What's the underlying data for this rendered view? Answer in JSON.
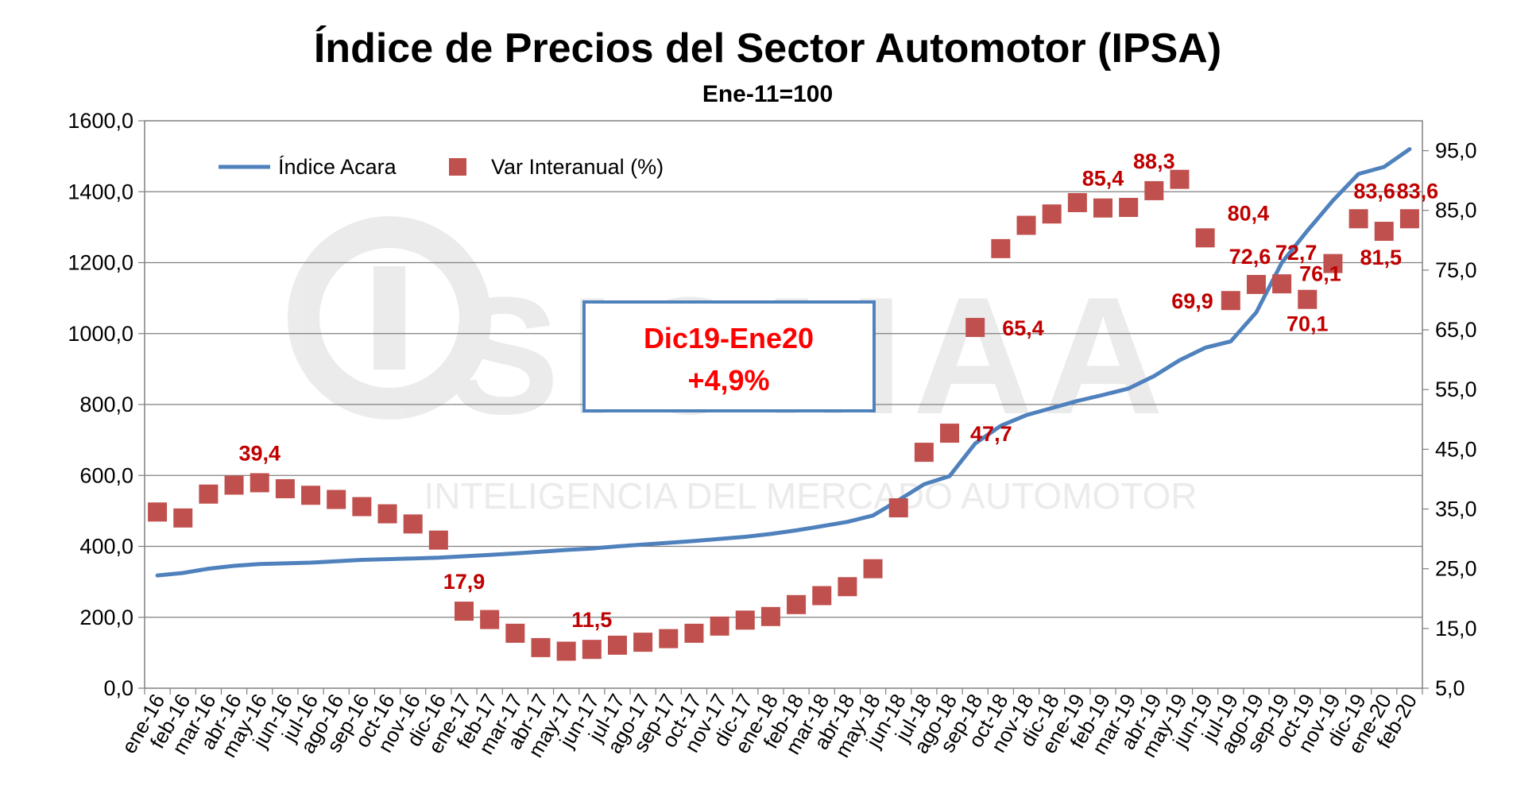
{
  "chart_data": {
    "type": "line",
    "title": "Índice de Precios del Sector Automotor (IPSA)",
    "subtitle": "Ene-11=100",
    "watermark": {
      "logo": "SIOMAA",
      "tagline": "INTELIGENCIA DEL MERCADO AUTOMOTOR"
    },
    "categories": [
      "ene-16",
      "feb-16",
      "mar-16",
      "abr-16",
      "may-16",
      "jun-16",
      "jul-16",
      "ago-16",
      "sep-16",
      "oct-16",
      "nov-16",
      "dic-16",
      "ene-17",
      "feb-17",
      "mar-17",
      "abr-17",
      "may-17",
      "jun-17",
      "jul-17",
      "ago-17",
      "sep-17",
      "oct-17",
      "nov-17",
      "dic-17",
      "ene-18",
      "feb-18",
      "mar-18",
      "abr-18",
      "may-18",
      "jun-18",
      "jul-18",
      "ago-18",
      "sep-18",
      "oct-18",
      "nov-18",
      "dic-18",
      "ene-19",
      "feb-19",
      "mar-19",
      "abr-19",
      "may-19",
      "jun-19",
      "jul-19",
      "ago-19",
      "sep-19",
      "oct-19",
      "nov-19",
      "dic-19",
      "ene-20",
      "feb-20"
    ],
    "left_axis": {
      "min": 0,
      "max": 1600,
      "step": 200,
      "ticks": [
        "0,0",
        "200,0",
        "400,0",
        "600,0",
        "800,0",
        "1000,0",
        "1200,0",
        "1400,0",
        "1600,0"
      ]
    },
    "right_axis": {
      "min": 5,
      "max": 100,
      "step": 10,
      "ticks": [
        "5,0",
        "15,0",
        "25,0",
        "35,0",
        "45,0",
        "55,0",
        "65,0",
        "75,0",
        "85,0",
        "95,0"
      ]
    },
    "series": [
      {
        "name": "Índice Acara",
        "type": "line",
        "axis": "left",
        "color": "#4f81bd",
        "values": [
          318,
          325,
          337,
          345,
          350,
          352,
          354,
          358,
          362,
          364,
          366,
          368,
          372,
          376,
          380,
          385,
          390,
          394,
          400,
          405,
          410,
          415,
          421,
          427,
          435,
          445,
          457,
          469,
          487,
          530,
          575,
          598,
          690,
          740,
          770,
          790,
          810,
          827,
          845,
          880,
          925,
          960,
          978,
          1060,
          1200,
          1290,
          1375,
          1450,
          1470,
          1520
        ]
      },
      {
        "name": "Var Interanual (%)",
        "type": "scatter",
        "axis": "right",
        "color": "#c0504d",
        "values": [
          34.5,
          33.5,
          37.5,
          39.0,
          39.4,
          38.4,
          37.3,
          36.6,
          35.4,
          34.2,
          32.5,
          29.8,
          17.9,
          16.5,
          14.2,
          11.8,
          11.2,
          11.5,
          12.2,
          12.7,
          13.3,
          14.2,
          15.4,
          16.4,
          17.0,
          19.0,
          20.5,
          22.0,
          25.0,
          35.2,
          44.5,
          47.7,
          65.4,
          78.6,
          82.5,
          84.4,
          86.3,
          85.4,
          85.5,
          88.3,
          90.2,
          80.4,
          69.9,
          72.6,
          72.7,
          70.1,
          76.1,
          83.6,
          81.5,
          83.6
        ]
      }
    ],
    "data_labels": [
      {
        "index": 4,
        "text": "39,4"
      },
      {
        "index": 12,
        "text": "17,9"
      },
      {
        "index": 17,
        "text": "11,5"
      },
      {
        "index": 31,
        "text": "47,7"
      },
      {
        "index": 32,
        "text": "65,4"
      },
      {
        "index": 37,
        "text": "85,4"
      },
      {
        "index": 39,
        "text": "88,3"
      },
      {
        "index": 41,
        "text": "80,4"
      },
      {
        "index": 42,
        "text": "69,9"
      },
      {
        "index": 43,
        "text": "72,6"
      },
      {
        "index": 44,
        "text": "72,7"
      },
      {
        "index": 45,
        "text": "70,1"
      },
      {
        "index": 46,
        "text": "76,1"
      },
      {
        "index": 47,
        "text": "83,6"
      },
      {
        "index": 48,
        "text": "81,5"
      },
      {
        "index": 49,
        "text": "83,6"
      }
    ],
    "annotation": {
      "line1": "Dic19-Ene20",
      "line2": "+4,9%"
    },
    "grid": true,
    "legend_position": "top-left"
  }
}
